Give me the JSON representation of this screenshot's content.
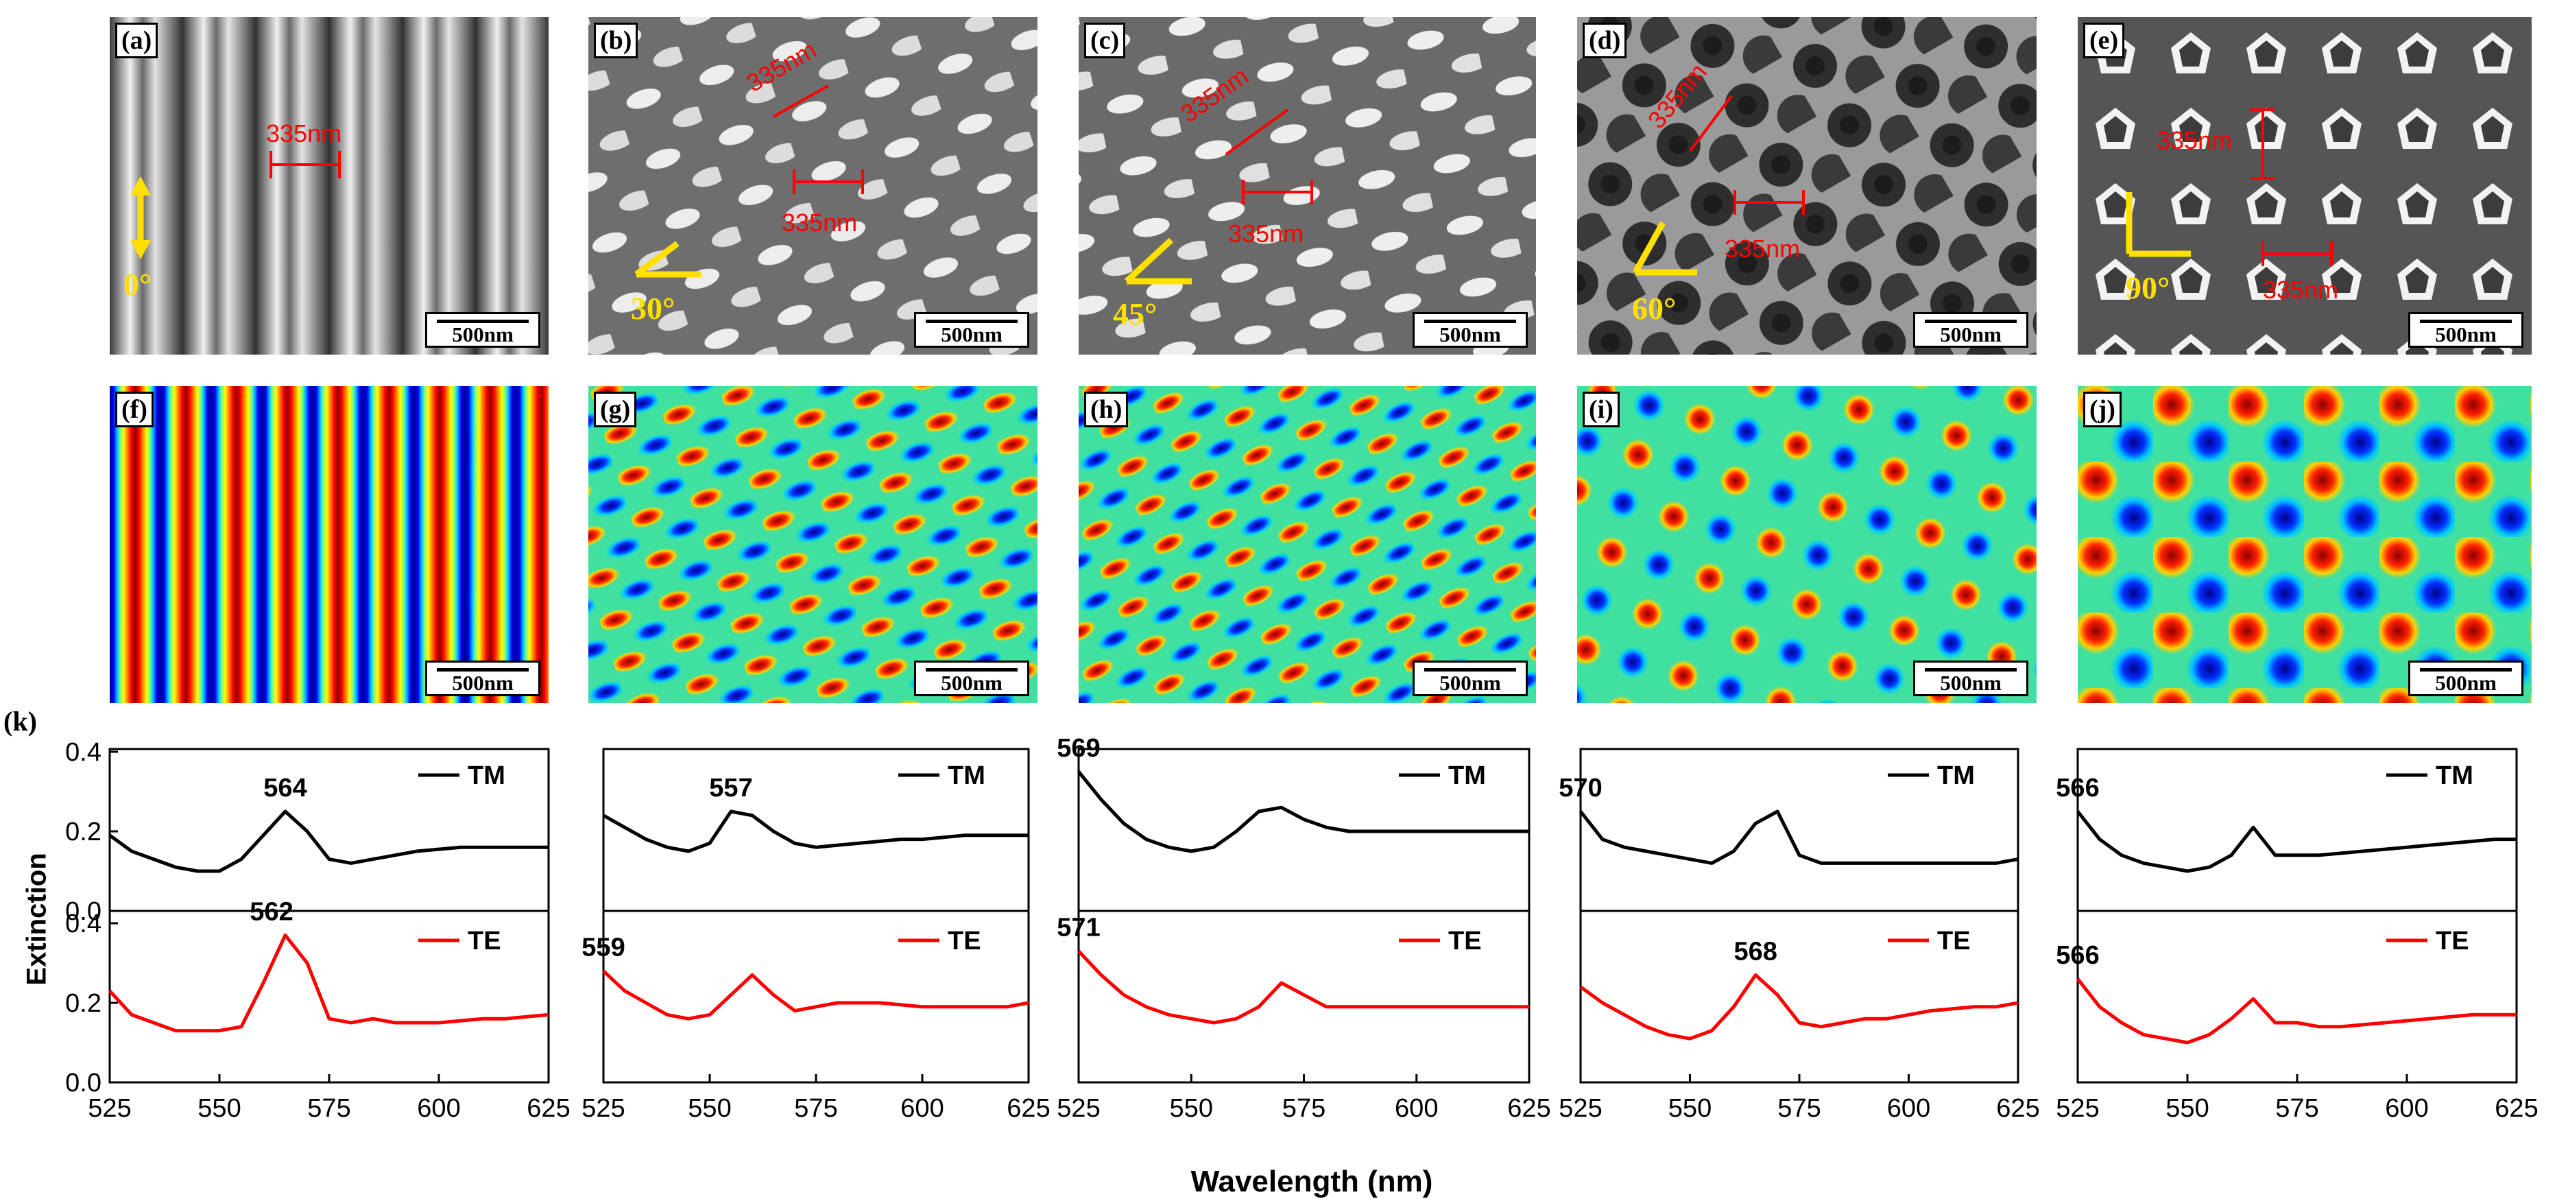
{
  "scale_bar": "500nm",
  "sem_panels": [
    {
      "tag": "(a)",
      "angle": "0°",
      "period_labels": [
        "335nm"
      ]
    },
    {
      "tag": "(b)",
      "angle": "30°",
      "period_labels": [
        "335nm",
        "335nm"
      ]
    },
    {
      "tag": "(c)",
      "angle": "45°",
      "period_labels": [
        "335nm",
        "335nm"
      ]
    },
    {
      "tag": "(d)",
      "angle": "60°",
      "period_labels": [
        "335nm",
        "335nm"
      ]
    },
    {
      "tag": "(e)",
      "angle": "90°",
      "period_labels": [
        "335nm",
        "335nm"
      ]
    }
  ],
  "sim_panels": [
    {
      "tag": "(f)"
    },
    {
      "tag": "(g)"
    },
    {
      "tag": "(h)"
    },
    {
      "tag": "(i)"
    },
    {
      "tag": "(j)"
    }
  ],
  "colors": {
    "tm": "#000000",
    "te": "#ff0000",
    "annotation": "#ff0000",
    "angle": "#ffe000"
  },
  "chart_data": {
    "type": "line",
    "panel_tag": "(k)",
    "ylabel": "Extinction",
    "xlabel": "Wavelength (nm)",
    "xlim": [
      525,
      625
    ],
    "xticks": [
      "525",
      "550",
      "575",
      "600",
      "625"
    ],
    "ylim_tm": [
      0.0,
      0.4
    ],
    "ylim_te": [
      0.0,
      0.4
    ],
    "yticks_tm": [
      "0.0",
      "0.2",
      "0.4"
    ],
    "yticks_te": [
      "0.0",
      "0.2",
      "0.4"
    ],
    "legend_tm": "TM",
    "legend_te": "TE",
    "x": [
      525,
      530,
      535,
      540,
      545,
      550,
      555,
      560,
      565,
      570,
      575,
      580,
      585,
      590,
      595,
      600,
      605,
      610,
      615,
      620,
      625
    ],
    "panels": [
      {
        "tm_peak": "564",
        "te_peak": "562",
        "tm": [
          0.19,
          0.15,
          0.13,
          0.11,
          0.1,
          0.1,
          0.13,
          0.19,
          0.25,
          0.2,
          0.13,
          0.12,
          0.13,
          0.14,
          0.15,
          0.155,
          0.16,
          0.16,
          0.16,
          0.16,
          0.16
        ],
        "te": [
          0.23,
          0.17,
          0.15,
          0.13,
          0.13,
          0.13,
          0.14,
          0.25,
          0.37,
          0.3,
          0.16,
          0.15,
          0.16,
          0.15,
          0.15,
          0.15,
          0.155,
          0.16,
          0.16,
          0.165,
          0.17
        ]
      },
      {
        "tm_peak": "557",
        "te_peak": "559",
        "tm": [
          0.24,
          0.21,
          0.18,
          0.16,
          0.15,
          0.17,
          0.25,
          0.24,
          0.2,
          0.17,
          0.16,
          0.165,
          0.17,
          0.175,
          0.18,
          0.18,
          0.185,
          0.19,
          0.19,
          0.19,
          0.19
        ],
        "te": [
          0.28,
          0.23,
          0.2,
          0.17,
          0.16,
          0.17,
          0.22,
          0.27,
          0.22,
          0.18,
          0.19,
          0.2,
          0.2,
          0.2,
          0.195,
          0.19,
          0.19,
          0.19,
          0.19,
          0.19,
          0.2
        ]
      },
      {
        "tm_peak": "569",
        "te_peak": "571",
        "tm": [
          0.35,
          0.28,
          0.22,
          0.18,
          0.16,
          0.15,
          0.16,
          0.2,
          0.25,
          0.26,
          0.23,
          0.21,
          0.2,
          0.2,
          0.2,
          0.2,
          0.2,
          0.2,
          0.2,
          0.2,
          0.2
        ],
        "te": [
          0.33,
          0.27,
          0.22,
          0.19,
          0.17,
          0.16,
          0.15,
          0.16,
          0.19,
          0.25,
          0.22,
          0.19,
          0.19,
          0.19,
          0.19,
          0.19,
          0.19,
          0.19,
          0.19,
          0.19,
          0.19
        ]
      },
      {
        "tm_peak": "570",
        "te_peak": "568",
        "tm": [
          0.25,
          0.18,
          0.16,
          0.15,
          0.14,
          0.13,
          0.12,
          0.15,
          0.22,
          0.25,
          0.14,
          0.12,
          0.12,
          0.12,
          0.12,
          0.12,
          0.12,
          0.12,
          0.12,
          0.12,
          0.13
        ],
        "te": [
          0.24,
          0.2,
          0.17,
          0.14,
          0.12,
          0.11,
          0.13,
          0.19,
          0.27,
          0.22,
          0.15,
          0.14,
          0.15,
          0.16,
          0.16,
          0.17,
          0.18,
          0.185,
          0.19,
          0.19,
          0.2
        ]
      },
      {
        "tm_peak": "566",
        "te_peak": "566",
        "tm": [
          0.25,
          0.18,
          0.14,
          0.12,
          0.11,
          0.1,
          0.11,
          0.14,
          0.21,
          0.14,
          0.14,
          0.14,
          0.145,
          0.15,
          0.155,
          0.16,
          0.165,
          0.17,
          0.175,
          0.18,
          0.18
        ],
        "te": [
          0.26,
          0.19,
          0.15,
          0.12,
          0.11,
          0.1,
          0.12,
          0.16,
          0.21,
          0.15,
          0.15,
          0.14,
          0.14,
          0.145,
          0.15,
          0.155,
          0.16,
          0.165,
          0.17,
          0.17,
          0.17
        ]
      }
    ]
  }
}
